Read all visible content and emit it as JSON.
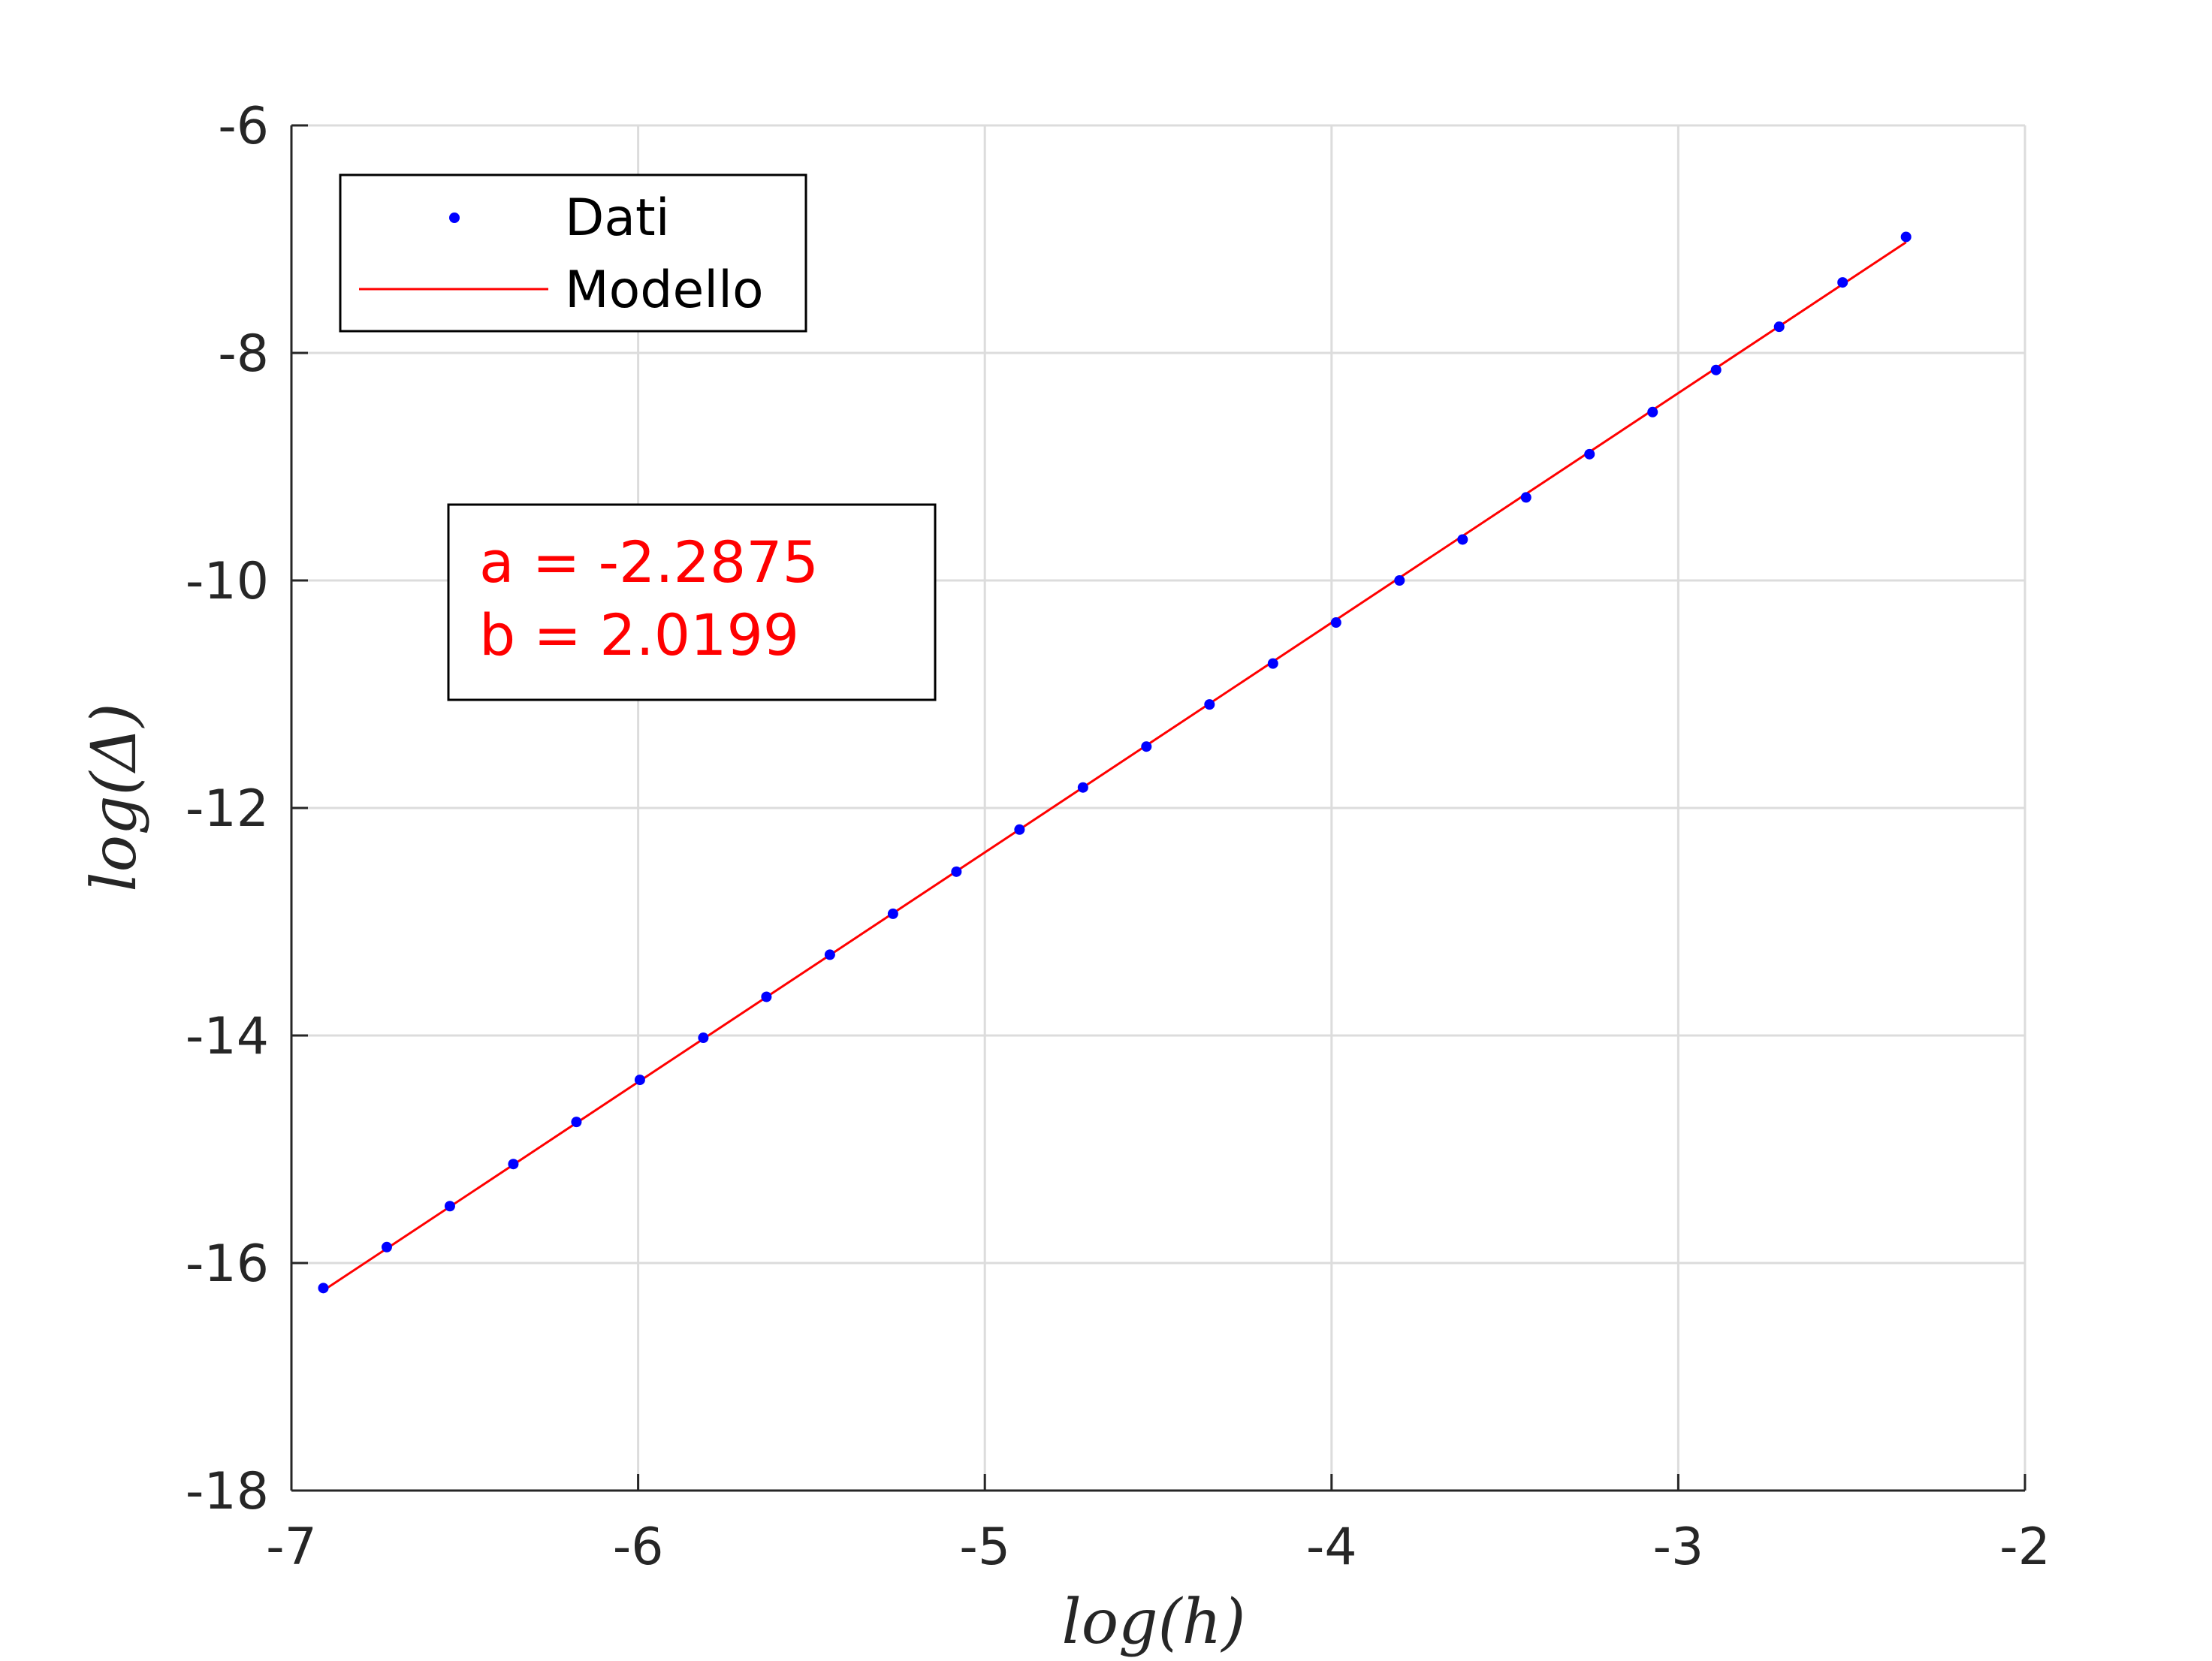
{
  "chart_data": {
    "type": "scatter",
    "title": "",
    "xlabel": "log(h)",
    "ylabel": "log(Δ)",
    "xlim": [
      -7,
      -2
    ],
    "ylim": [
      -18,
      -6
    ],
    "xticks": [
      -7,
      -6,
      -5,
      -4,
      -3,
      -2
    ],
    "yticks": [
      -18,
      -16,
      -14,
      -12,
      -10,
      -8,
      -6
    ],
    "xtick_labels": [
      "-7",
      "-6",
      "-5",
      "-4",
      "-3",
      "-2"
    ],
    "ytick_labels": [
      "-18",
      "-16",
      "-14",
      "-12",
      "-10",
      "-8",
      "-6"
    ],
    "grid": true,
    "legend_position": "top-left",
    "series": [
      {
        "name": "Dati",
        "type": "scatter",
        "color": "#0000ff",
        "x": [
          -6.908,
          -6.725,
          -6.543,
          -6.36,
          -6.178,
          -5.995,
          -5.812,
          -5.63,
          -5.447,
          -5.265,
          -5.082,
          -4.9,
          -4.717,
          -4.534,
          -4.352,
          -4.169,
          -3.987,
          -3.804,
          -3.622,
          -3.439,
          -3.256,
          -3.074,
          -2.891,
          -2.709,
          -2.526,
          -2.343
        ],
        "y": [
          -16.22,
          -15.86,
          -15.5,
          -15.13,
          -14.76,
          -14.39,
          -14.02,
          -13.66,
          -13.29,
          -12.93,
          -12.56,
          -12.19,
          -11.82,
          -11.46,
          -11.09,
          -10.73,
          -10.37,
          -10.0,
          -9.64,
          -9.27,
          -8.89,
          -8.52,
          -8.15,
          -7.77,
          -7.38,
          -6.98
        ]
      },
      {
        "name": "Modello",
        "type": "line",
        "color": "#ff0000",
        "x": [
          -6.908,
          -2.343
        ],
        "y": [
          -16.242,
          -7.027
        ]
      }
    ],
    "annotation": {
      "color": "#ff0000",
      "lines": [
        "a = -2.2875",
        "b = 2.0199"
      ]
    }
  }
}
